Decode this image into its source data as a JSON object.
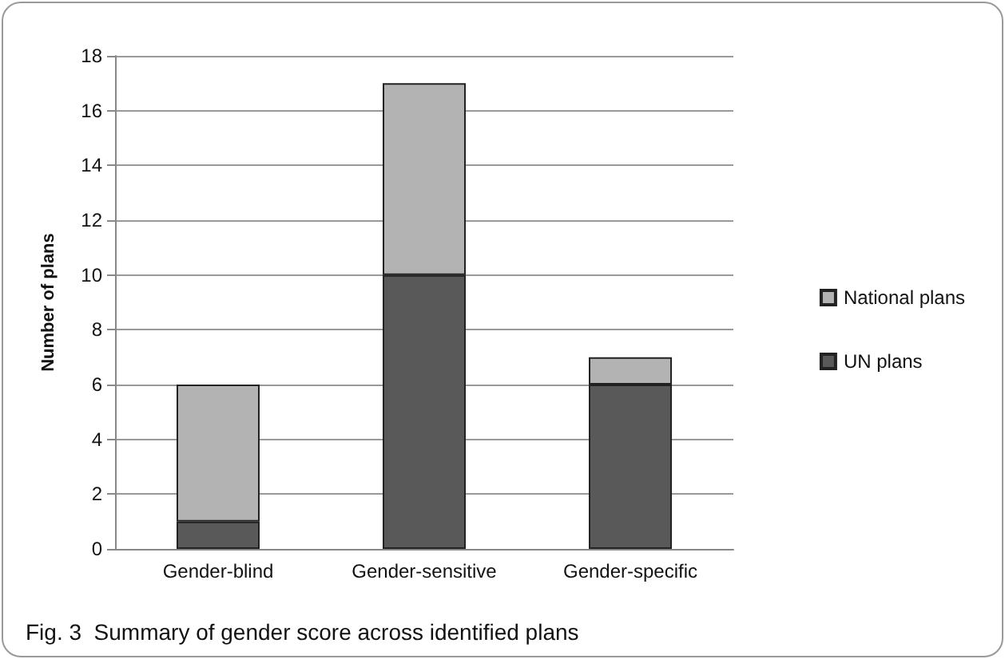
{
  "chart_data": {
    "type": "bar",
    "stacked": true,
    "ylabel": "Number of plans",
    "categories": [
      "Gender-blind",
      "Gender-sensitive",
      "Gender-specific"
    ],
    "series": [
      {
        "name": "UN plans",
        "color": "#595959",
        "values": [
          1,
          10,
          6
        ]
      },
      {
        "name": "National plans",
        "color": "#b3b3b3",
        "values": [
          5,
          7,
          1
        ]
      }
    ],
    "ylim": [
      0,
      18
    ],
    "yticks": [
      0,
      2,
      4,
      6,
      8,
      10,
      12,
      14,
      16,
      18
    ],
    "grid": "y",
    "legend": "right",
    "annotations": [
      "Fig. 3  Summary of gender score across identified plans"
    ]
  }
}
